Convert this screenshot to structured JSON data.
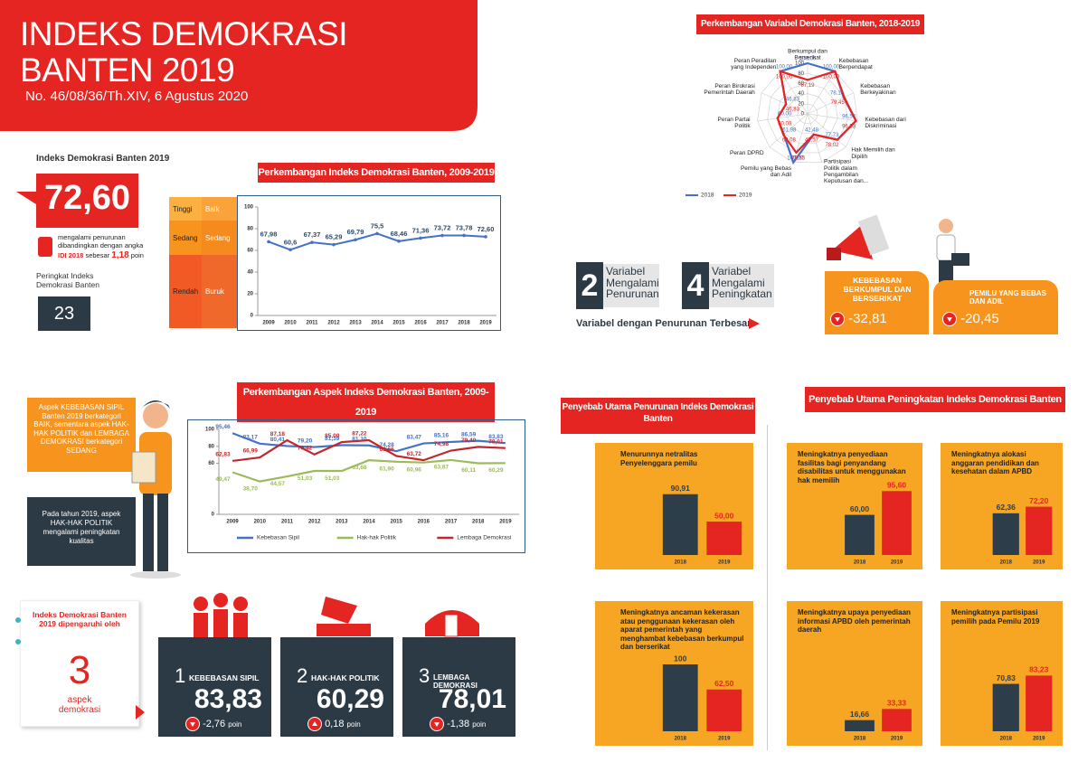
{
  "header": {
    "title_line1": "INDEKS DEMOKRASI",
    "title_line2": "BANTEN 2019",
    "subtitle": "No. 46/08/36/Th.XIV, 6 Agustus 2020"
  },
  "summary": {
    "label": "Indeks Demokrasi Banten 2019",
    "value": "72,60",
    "note": "mengalami penurunan dibandingkan dengan angka",
    "note_highlight": "IDI 2018",
    "note_2": "sebesar",
    "change": "1,18",
    "unit": "poin",
    "rank_label": "Peringkat Indeks Demokrasi Banten",
    "rank": "23"
  },
  "chart_data": [
    {
      "type": "line",
      "title": "Perkembangan Indeks Demokrasi Banten, 2009-2019",
      "categories": [
        "2009",
        "2010",
        "2011",
        "2012",
        "2013",
        "2014",
        "2015",
        "2016",
        "2017",
        "2018",
        "2019"
      ],
      "values": [
        67.98,
        60.6,
        67.37,
        65.29,
        69.79,
        75.5,
        68.46,
        71.36,
        73.72,
        73.78,
        72.6
      ],
      "value_labels": [
        "67,98",
        "60,6",
        "67,37",
        "65,29",
        "69,79",
        "75,5",
        "68,46",
        "71,36",
        "73,72",
        "73,78",
        "72,60"
      ],
      "color": "#4472c4",
      "ylim": [
        0,
        100
      ],
      "yticks": [
        0,
        20,
        40,
        60,
        80,
        100
      ],
      "bands": [
        {
          "label": "Tinggi",
          "category": "Baik"
        },
        {
          "label": "Sedang",
          "category": "Sedang"
        },
        {
          "label": "Rendah",
          "category": "Buruk"
        }
      ]
    },
    {
      "type": "radar",
      "title": "Perkembangan Variabel Demokrasi Banten, 2018-2019",
      "categories": [
        "Berkumpul dan Berserikat",
        "Kebebasan Berpendapat",
        "Kebebasan Berkeyakinan",
        "Kebebasan dari Diskriminasi",
        "Hak Memilih dan Dipilih",
        "Partisipasi Politik dalam Pengambilan Keputusan dan...",
        "Pemilu yang Bebas dan Adil",
        "Peran DPRD",
        "Peran Partai Politik",
        "Peran Birokrasi Pemerintah Daerah",
        "Peran Peradilan yang Independen"
      ],
      "series": [
        {
          "name": "2018",
          "color": "#4472c4",
          "values": [
            100,
            100,
            78.15,
            96.53,
            77.73,
            42.48,
            100,
            61.98,
            60,
            46.83,
            100
          ],
          "value_labels": [
            "100,00",
            "100,00",
            "78,15",
            "96,53",
            "77,73",
            "42,48",
            "100,00",
            "61,98",
            "60,00",
            "46,83",
            "100,00"
          ]
        },
        {
          "name": "2019",
          "color": "#e52521",
          "values": [
            67.19,
            100,
            79.45,
            96.53,
            78.02,
            42.57,
            79.55,
            63.08,
            60,
            46.83,
            100
          ],
          "value_labels": [
            "67,19",
            "100,00",
            "79,45",
            "96,53",
            "78,02",
            "42,57",
            "79,55",
            "63,08",
            "60,00",
            "46,83",
            "100,00"
          ]
        }
      ],
      "ylim": [
        0,
        100
      ],
      "yticks": [
        0,
        20,
        40,
        60,
        80,
        100
      ],
      "legend": "bottom"
    },
    {
      "type": "line",
      "title": "Perkembangan Aspek Indeks Demokrasi Banten, 2009-2019",
      "categories": [
        "2009",
        "2010",
        "2011",
        "2012",
        "2013",
        "2014",
        "2015",
        "2016",
        "2017",
        "2018",
        "2019"
      ],
      "series": [
        {
          "name": "Kebebasan Sipil",
          "color": "#4472c4",
          "values": [
            95.46,
            83.17,
            80.41,
            79.2,
            81.39,
            81.1,
            74.28,
            83.47,
            85.16,
            86.59,
            83.83
          ],
          "value_labels": [
            "95,46",
            "83,17",
            "80,41",
            "79,20",
            "81,39",
            "81,10",
            "74,28",
            "83,47",
            "85,16",
            "86,59",
            "83,83"
          ]
        },
        {
          "name": "Hak-hak Politik",
          "color": "#9bbb59",
          "values": [
            49.47,
            38.7,
            44.57,
            51.03,
            51.03,
            63.68,
            61.9,
            60.96,
            63.87,
            60.11,
            60.29
          ],
          "value_labels": [
            "49,47",
            "38,70",
            "44,57",
            "51,03",
            "51,03",
            "63,68",
            "61,90",
            "60,96",
            "63,87",
            "60,11",
            "60,29"
          ]
        },
        {
          "name": "Lembaga Demokrasi",
          "color": "#c0282d",
          "values": [
            62.83,
            66.99,
            87.18,
            70.42,
            85,
            87.22,
            68.66,
            63.72,
            74.98,
            79.4,
            78.01
          ],
          "value_labels": [
            "62,83",
            "66,99",
            "87,18",
            "70,42",
            "85,00",
            "87,22",
            "68,66",
            "63,72",
            "74,98",
            "79,40",
            "78,01"
          ]
        }
      ],
      "ylim": [
        0,
        100
      ],
      "yticks": [
        0,
        60,
        80,
        100
      ],
      "legend": "bottom"
    },
    {
      "type": "bar",
      "title": "Menurunnya netralitas Penyelenggara pemilu",
      "categories": [
        "2018",
        "2019"
      ],
      "values": [
        90.91,
        50
      ],
      "value_labels": [
        "90,91",
        "50,00"
      ],
      "colors": [
        "#2d3e4a",
        "#e52521"
      ],
      "ylim": [
        0,
        100
      ]
    },
    {
      "type": "bar",
      "title": "Meningkatnya ancaman kekerasan atau penggunaan kekerasan oleh aparat pemerintah yang menghambat kebebasan berkumpul dan berserikat",
      "categories": [
        "2018",
        "2019"
      ],
      "values": [
        100,
        62.5
      ],
      "value_labels": [
        "100",
        "62,50"
      ],
      "colors": [
        "#2d3e4a",
        "#e52521"
      ],
      "ylim": [
        0,
        100
      ]
    },
    {
      "type": "bar",
      "title": "Meningkatnya penyediaan fasilitas bagi penyandang disabilitas untuk menggunakan hak memilih",
      "categories": [
        "2018",
        "2019"
      ],
      "values": [
        60,
        95.6
      ],
      "value_labels": [
        "60,00",
        "95,60"
      ],
      "colors": [
        "#2d3e4a",
        "#e52521"
      ],
      "ylim": [
        0,
        100
      ]
    },
    {
      "type": "bar",
      "title": "Meningkatnya alokasi anggaran pendidikan dan kesehatan dalam APBD",
      "categories": [
        "2018",
        "2019"
      ],
      "values": [
        62.36,
        72.2
      ],
      "value_labels": [
        "62,36",
        "72,20"
      ],
      "colors": [
        "#2d3e4a",
        "#e52521"
      ],
      "ylim": [
        0,
        100
      ]
    },
    {
      "type": "bar",
      "title": "Meningkatnya upaya penyediaan informasi APBD oleh pemerintah daerah",
      "categories": [
        "2018",
        "2019"
      ],
      "values": [
        16.66,
        33.33
      ],
      "value_labels": [
        "16,66",
        "33,33"
      ],
      "colors": [
        "#2d3e4a",
        "#e52521"
      ],
      "ylim": [
        0,
        100
      ]
    },
    {
      "type": "bar",
      "title": "Meningkatnya partisipasi pemilih pada Pemilu 2019",
      "categories": [
        "2018",
        "2019"
      ],
      "values": [
        70.83,
        83.23
      ],
      "value_labels": [
        "70,83",
        "83,23"
      ],
      "colors": [
        "#2d3e4a",
        "#e52521"
      ],
      "ylim": [
        0,
        100
      ]
    }
  ],
  "variables": {
    "down_count": "2",
    "down_label": "Variabel Mengalami Penurunan",
    "up_count": "4",
    "up_label": "Variabel Mengalami Peningkatan",
    "largest_drop_label": "Variabel dengan Penurunan Terbesar",
    "drops": [
      {
        "name": "KEBEBASAN BERKUMPUL DAN BERSERIKAT",
        "value": "-32,81"
      },
      {
        "name": "PEMILU YANG BEBAS DAN ADIL",
        "value": "-20,45"
      }
    ]
  },
  "aspect_notes": [
    "Aspek KEBEBASAN SIPIL Banten 2019 berkategori BAIK, sementara aspek HAK-HAK POLITIK dan LEMBAGA DEMOKRASI berkategori SEDANG",
    "Pada tahun 2019, aspek HAK-HAK POLITIK mengalami peningkatan kualitas"
  ],
  "aspects": {
    "intro": "Indeks Demokrasi Banten 2019 dipengaruhi oleh",
    "count": "3",
    "count_label": "aspek demokrasi",
    "items": [
      {
        "number": "1",
        "name": "KEBEBASAN SIPIL",
        "value": "83,83",
        "change": "-2,76",
        "unit": "poin"
      },
      {
        "number": "2",
        "name": "HAK-HAK POLITIK",
        "value": "60,29",
        "change": "0,18",
        "unit": "poin"
      },
      {
        "number": "3",
        "name": "LEMBAGA DEMOKRASI",
        "value": "78,01",
        "change": "-1,38",
        "unit": "poin"
      }
    ]
  },
  "causes": {
    "decrease_title": "Penyebab Utama Penurunan Indeks Demokrasi Banten",
    "increase_title": "Penyebab Utama Peningkatan Indeks Demokrasi Banten"
  }
}
